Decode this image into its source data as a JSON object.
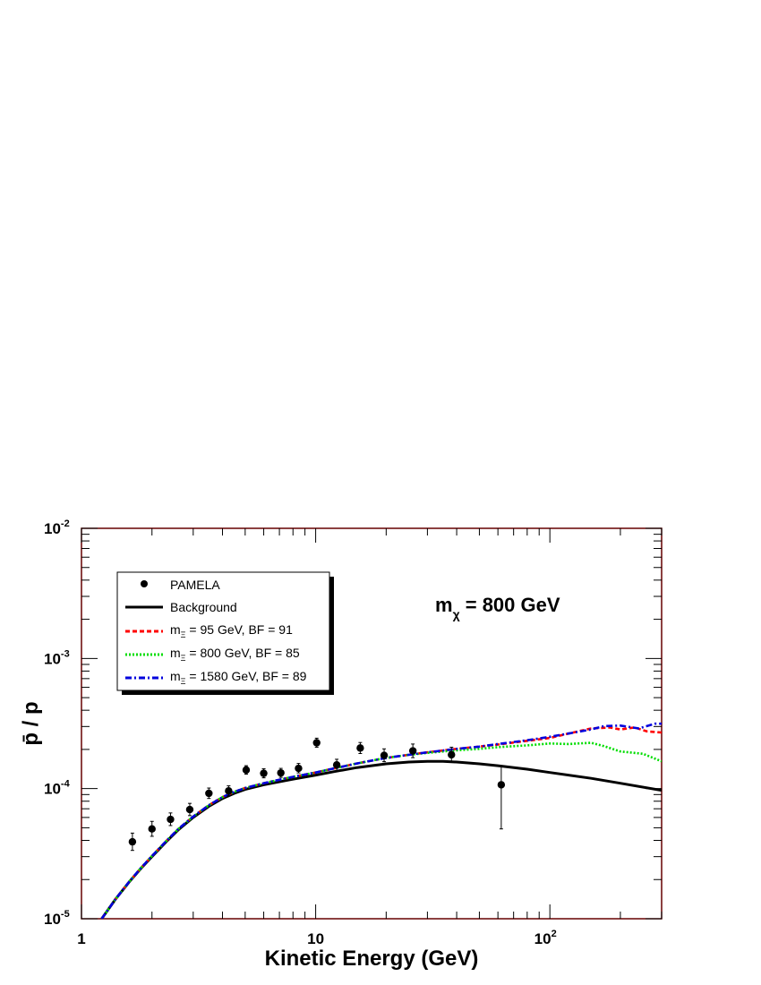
{
  "chart_data": {
    "type": "line",
    "xlabel": "Kinetic Energy (GeV)",
    "ylabel": "p̄ / p",
    "xscale": "log",
    "yscale": "log",
    "xlim": [
      1,
      300
    ],
    "ylim": [
      1e-05,
      0.01
    ],
    "x_ticks": [
      {
        "value": 1,
        "label": "1"
      },
      {
        "value": 10,
        "label": "10"
      },
      {
        "value": 100,
        "label": "10",
        "exp": "2"
      }
    ],
    "y_ticks": [
      {
        "value": 1e-05,
        "label": "10",
        "exp": "-5"
      },
      {
        "value": 0.0001,
        "label": "10",
        "exp": "-4"
      },
      {
        "value": 0.001,
        "label": "10",
        "exp": "-3"
      },
      {
        "value": 0.01,
        "label": "10",
        "exp": "-2"
      }
    ],
    "annotation": {
      "main": "m",
      "sub": "χ",
      "rest": " = 800 GeV"
    },
    "legend_position": "top-left",
    "data_points": {
      "name": "PAMELA",
      "color": "#000000",
      "points": [
        {
          "x": 1.65,
          "y": 3.9e-05,
          "ylo": 3.35e-05,
          "yhi": 4.55e-05
        },
        {
          "x": 2.0,
          "y": 4.9e-05,
          "ylo": 4.3e-05,
          "yhi": 5.6e-05
        },
        {
          "x": 2.4,
          "y": 5.8e-05,
          "ylo": 5.2e-05,
          "yhi": 6.5e-05
        },
        {
          "x": 2.9,
          "y": 6.9e-05,
          "ylo": 6.2e-05,
          "yhi": 7.7e-05
        },
        {
          "x": 3.5,
          "y": 9.2e-05,
          "ylo": 8.4e-05,
          "yhi": 0.000101
        },
        {
          "x": 4.25,
          "y": 9.6e-05,
          "ylo": 8.8e-05,
          "yhi": 0.000105
        },
        {
          "x": 5.05,
          "y": 0.000139,
          "ylo": 0.000129,
          "yhi": 0.00015
        },
        {
          "x": 6.0,
          "y": 0.000131,
          "ylo": 0.000121,
          "yhi": 0.000142
        },
        {
          "x": 7.1,
          "y": 0.000132,
          "ylo": 0.000122,
          "yhi": 0.000143
        },
        {
          "x": 8.45,
          "y": 0.000143,
          "ylo": 0.000132,
          "yhi": 0.000156
        },
        {
          "x": 10.1,
          "y": 0.000225,
          "ylo": 0.000208,
          "yhi": 0.000244
        },
        {
          "x": 12.3,
          "y": 0.000152,
          "ylo": 0.000137,
          "yhi": 0.000168
        },
        {
          "x": 15.5,
          "y": 0.000205,
          "ylo": 0.000186,
          "yhi": 0.000226
        },
        {
          "x": 19.6,
          "y": 0.00018,
          "ylo": 0.000161,
          "yhi": 0.000202
        },
        {
          "x": 26.0,
          "y": 0.000195,
          "ylo": 0.000173,
          "yhi": 0.00022
        },
        {
          "x": 38.0,
          "y": 0.000182,
          "ylo": 0.00016,
          "yhi": 0.000208
        },
        {
          "x": 62.0,
          "y": 0.000107,
          "ylo": 4.9e-05,
          "yhi": 0.000148
        }
      ]
    },
    "series": [
      {
        "name": "Background",
        "color": "#000000",
        "dash": "solid",
        "x": [
          1.22,
          1.4,
          1.6,
          1.8,
          2.0,
          2.3,
          2.6,
          3.0,
          3.5,
          4.0,
          4.5,
          5.0,
          6.0,
          7.0,
          8.0,
          10,
          12,
          15,
          20,
          25,
          30,
          35,
          40,
          50,
          60,
          80,
          100,
          150,
          200,
          300
        ],
        "y": [
          1e-05,
          1.42e-05,
          1.92e-05,
          2.45e-05,
          3e-05,
          3.9e-05,
          4.85e-05,
          6e-05,
          7.3e-05,
          8.4e-05,
          9.2e-05,
          9.85e-05,
          0.000107,
          0.000113,
          0.000118,
          0.000127,
          0.000135,
          0.000145,
          0.000155,
          0.00016,
          0.000162,
          0.000162,
          0.00016,
          0.000155,
          0.00015,
          0.000141,
          0.000133,
          0.00012,
          0.00011,
          9.7e-05
        ]
      },
      {
        "label_parts": {
          "pre": "m",
          "sub": "Ξ",
          "post": " = 95 GeV, BF = 91"
        },
        "color": "#ff0000",
        "dash": "dashed",
        "x": [
          1.22,
          1.4,
          1.6,
          1.8,
          2.0,
          2.3,
          2.6,
          3.0,
          3.5,
          4.0,
          4.5,
          5.0,
          6.0,
          7.0,
          8.0,
          10,
          12,
          15,
          20,
          25,
          30,
          40,
          50,
          60,
          80,
          100,
          120,
          150,
          180,
          200,
          230,
          260,
          300
        ],
        "y": [
          1e-05,
          1.42e-05,
          1.93e-05,
          2.47e-05,
          3.03e-05,
          3.95e-05,
          4.92e-05,
          6.1e-05,
          7.45e-05,
          8.6e-05,
          9.45e-05,
          0.000101,
          0.00011,
          0.000117,
          0.000123,
          0.000133,
          0.000143,
          0.000156,
          0.000172,
          0.000182,
          0.00019,
          0.000202,
          0.00021,
          0.000218,
          0.000233,
          0.000245,
          0.000265,
          0.00029,
          0.000295,
          0.000285,
          0.000295,
          0.000275,
          0.00027
        ]
      },
      {
        "label_parts": {
          "pre": "m",
          "sub": "Ξ",
          "post": " = 800 GeV, BF = 85"
        },
        "color": "#00dd00",
        "dash": "dotted",
        "x": [
          1.22,
          1.4,
          1.6,
          1.8,
          2.0,
          2.3,
          2.6,
          3.0,
          3.5,
          4.0,
          4.5,
          5.0,
          6.0,
          7.0,
          8.0,
          10,
          12,
          15,
          20,
          25,
          30,
          40,
          50,
          60,
          80,
          100,
          120,
          150,
          170,
          200,
          250,
          300
        ],
        "y": [
          1e-05,
          1.42e-05,
          1.93e-05,
          2.47e-05,
          3.03e-05,
          3.95e-05,
          4.92e-05,
          6.1e-05,
          7.45e-05,
          8.6e-05,
          9.45e-05,
          0.000101,
          0.00011,
          0.000117,
          0.000123,
          0.000133,
          0.000143,
          0.000156,
          0.000172,
          0.000182,
          0.000188,
          0.000197,
          0.000202,
          0.000208,
          0.000215,
          0.000222,
          0.00022,
          0.000225,
          0.000212,
          0.000193,
          0.000185,
          0.000162
        ]
      },
      {
        "label_parts": {
          "pre": "m",
          "sub": "Ξ",
          "post": " = 1580 GeV, BF = 89"
        },
        "color": "#0000dd",
        "dash": "dashdot",
        "x": [
          1.22,
          1.4,
          1.6,
          1.8,
          2.0,
          2.3,
          2.6,
          3.0,
          3.5,
          4.0,
          4.5,
          5.0,
          6.0,
          7.0,
          8.0,
          10,
          12,
          15,
          20,
          25,
          30,
          40,
          50,
          60,
          80,
          100,
          120,
          150,
          170,
          200,
          240,
          280,
          300
        ],
        "y": [
          1e-05,
          1.42e-05,
          1.93e-05,
          2.47e-05,
          3.03e-05,
          3.95e-05,
          4.92e-05,
          6.1e-05,
          7.45e-05,
          8.6e-05,
          9.45e-05,
          0.000101,
          0.00011,
          0.000117,
          0.000123,
          0.000133,
          0.000143,
          0.000156,
          0.000172,
          0.000182,
          0.00019,
          0.000202,
          0.00021,
          0.00022,
          0.000235,
          0.00025,
          0.000265,
          0.000285,
          0.000302,
          0.000305,
          0.00029,
          0.000315,
          0.000315
        ]
      }
    ]
  }
}
